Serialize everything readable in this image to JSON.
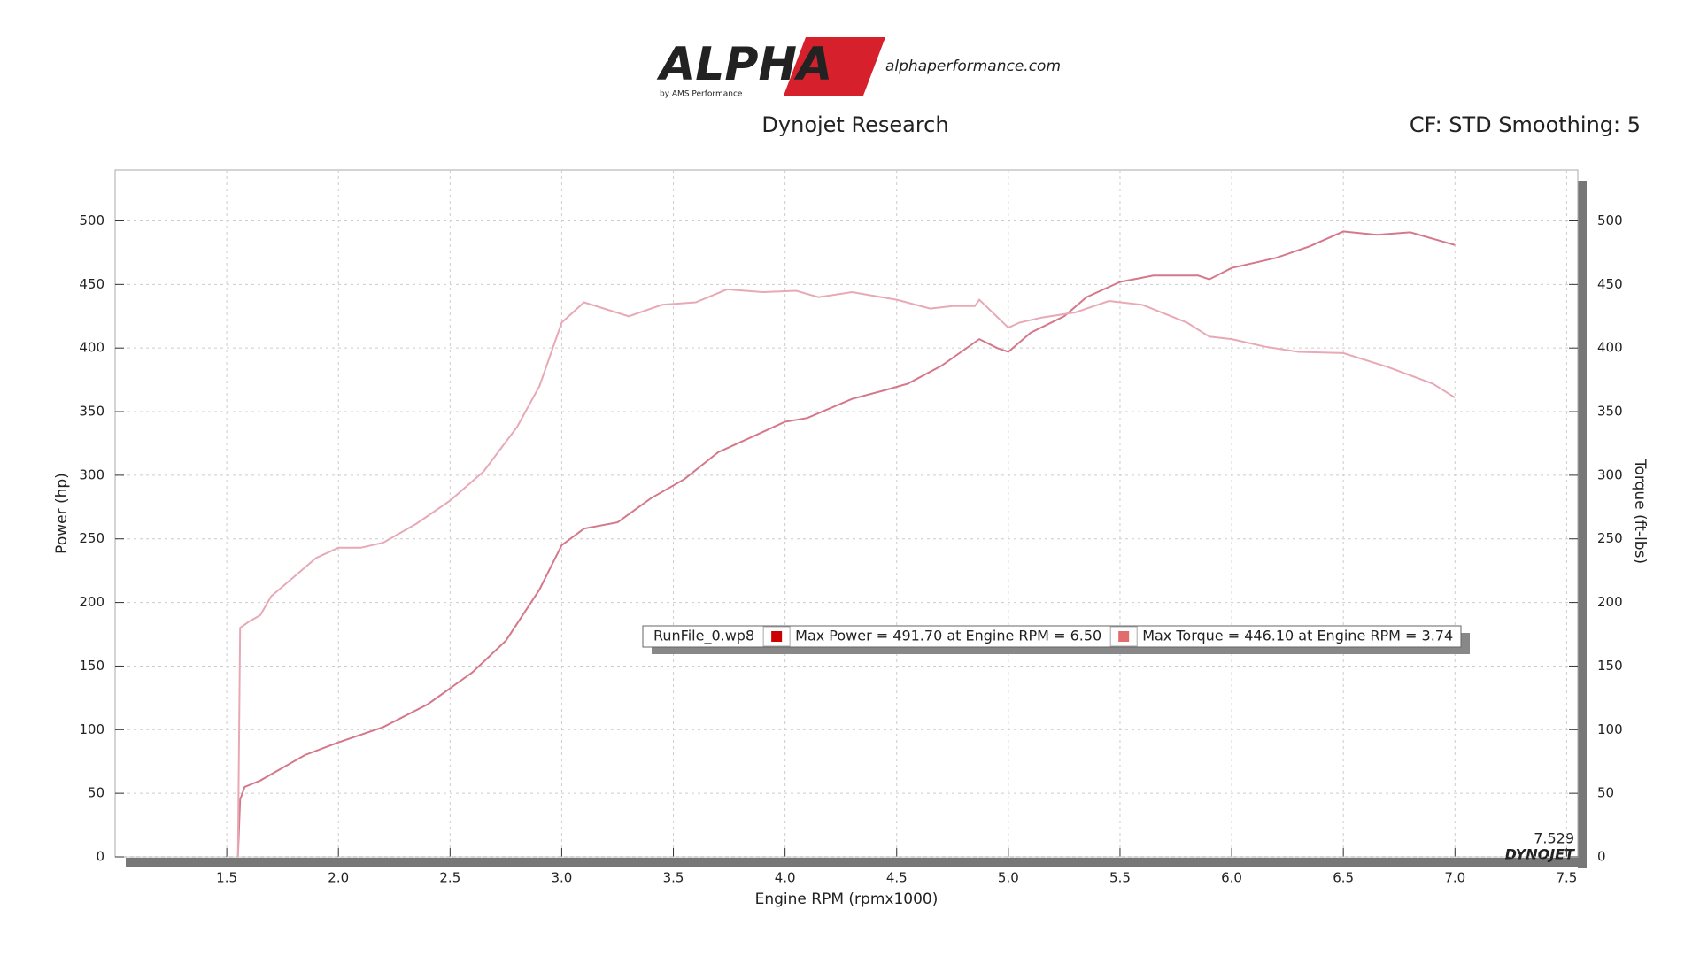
{
  "logo": {
    "brand": "ALPHA",
    "tagline": "by AMS Performance",
    "site": "alphaperformance.com"
  },
  "chart_data": {
    "type": "line",
    "title": "Dynojet Research",
    "subtitle": "CF: STD Smoothing: 5",
    "x_label": "Engine RPM (rpmx1000)",
    "y_label": "Power (hp)",
    "y2_label": "Torque (ft-lbs)",
    "legend_file": "RunFile_0.wp8",
    "corner_value": "7.529",
    "corner_brand": "DYNOJET",
    "xlim": [
      1.0,
      7.55
    ],
    "xticks": [
      1.5,
      {
        "value": 2,
        "label": "2.0"
      },
      2.5,
      {
        "value": 3,
        "label": "3.0"
      },
      3.5,
      {
        "value": 4,
        "label": "4.0"
      },
      4.5,
      {
        "value": 5,
        "label": "5.0"
      },
      5.5,
      {
        "value": 6,
        "label": "6.0"
      },
      6.5,
      {
        "value": 7,
        "label": "7.0"
      },
      7.5
    ],
    "ylim": [
      0,
      540
    ],
    "yticks": [
      0,
      50,
      100,
      150,
      200,
      250,
      300,
      350,
      400,
      450,
      500
    ],
    "y2lim": [
      0,
      540
    ],
    "y2ticks": [
      0,
      50,
      100,
      150,
      200,
      250,
      300,
      350,
      400,
      450,
      500
    ],
    "grid": true,
    "series": [
      {
        "name": "Max Power = 491.70 at Engine RPM = 6.50",
        "color": "#d4788a",
        "swatch": "#cc0000",
        "x": [
          1.55,
          1.56,
          1.58,
          1.65,
          1.75,
          1.85,
          2.0,
          2.2,
          2.4,
          2.6,
          2.75,
          2.9,
          3.0,
          3.1,
          3.25,
          3.4,
          3.55,
          3.7,
          3.85,
          4.0,
          4.1,
          4.3,
          4.45,
          4.55,
          4.7,
          4.87,
          4.95,
          5.0,
          5.1,
          5.25,
          5.35,
          5.5,
          5.65,
          5.85,
          5.9,
          6.0,
          6.2,
          6.35,
          6.5,
          6.65,
          6.8,
          7.0
        ],
        "values": [
          0,
          45,
          55,
          60,
          70,
          80,
          90,
          102,
          120,
          145,
          170,
          210,
          245,
          258,
          263,
          282,
          297,
          318,
          330,
          342,
          345,
          360,
          367,
          372,
          386,
          407,
          400,
          397,
          412,
          425,
          440,
          452,
          457,
          457,
          454,
          463,
          471,
          480,
          491.7,
          489,
          491,
          481
        ]
      },
      {
        "name": "Max Torque = 446.10 at Engine RPM = 3.74",
        "color": "#e8a9b5",
        "swatch": "#e06c6c",
        "axis": "y2",
        "x": [
          1.55,
          1.56,
          1.6,
          1.65,
          1.7,
          1.8,
          1.9,
          2.0,
          2.1,
          2.2,
          2.35,
          2.5,
          2.65,
          2.8,
          2.9,
          3.0,
          3.1,
          3.3,
          3.45,
          3.6,
          3.74,
          3.9,
          4.05,
          4.15,
          4.3,
          4.5,
          4.65,
          4.75,
          4.85,
          4.87,
          5.0,
          5.05,
          5.15,
          5.3,
          5.45,
          5.6,
          5.8,
          5.9,
          6.0,
          6.15,
          6.3,
          6.5,
          6.7,
          6.9,
          7.0
        ],
        "values": [
          0,
          180,
          185,
          190,
          205,
          220,
          235,
          243,
          243,
          247,
          262,
          280,
          303,
          338,
          370,
          420,
          436,
          425,
          434,
          436,
          446.1,
          444,
          445,
          440,
          444,
          438,
          431,
          433,
          433,
          438,
          416,
          420,
          424,
          428,
          437,
          434,
          420,
          409,
          407,
          401,
          397,
          396,
          385,
          372,
          361
        ]
      }
    ]
  }
}
